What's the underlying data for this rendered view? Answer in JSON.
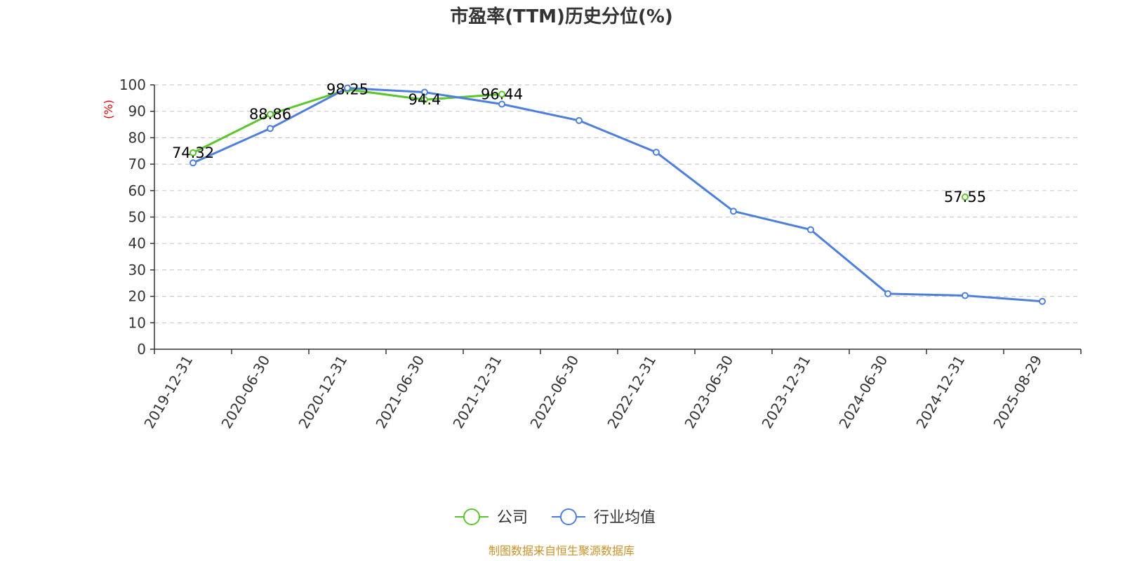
{
  "chart_data": {
    "type": "line",
    "title": "市盈率(TTM)历史分位(%)",
    "ylabel": "(%)",
    "ylim": [
      0,
      100
    ],
    "yticks": [
      0,
      10,
      20,
      30,
      40,
      50,
      60,
      70,
      80,
      90,
      100
    ],
    "categories": [
      "2019-12-31",
      "2020-06-30",
      "2020-12-31",
      "2021-06-30",
      "2021-12-31",
      "2022-06-30",
      "2022-12-31",
      "2023-06-30",
      "2023-12-31",
      "2024-06-30",
      "2024-12-31",
      "2025-08-29"
    ],
    "grid": true,
    "legend_position": "bottom-center",
    "series": [
      {
        "name": "公司",
        "color": "#5bc52c",
        "values": [
          74.32,
          88.86,
          98.25,
          94.4,
          96.44,
          null,
          null,
          null,
          null,
          null,
          57.55,
          null
        ],
        "labels": [
          "74.32",
          "88.86",
          "98.25",
          "94.4",
          "96.44",
          null,
          null,
          null,
          null,
          null,
          "57.55",
          null
        ]
      },
      {
        "name": "行业均值",
        "color": "#4e7fdd",
        "values": [
          70.5,
          83.5,
          98.8,
          97.2,
          92.7,
          86.5,
          74.5,
          52.2,
          45.2,
          21.0,
          20.3,
          18.1
        ],
        "labels": [
          null,
          null,
          null,
          null,
          null,
          null,
          null,
          null,
          null,
          null,
          null,
          null
        ]
      }
    ]
  },
  "source_text": "制图数据来自恒生聚源数据库",
  "source_color": "#c8922a",
  "ylabel_color": "#e60000"
}
